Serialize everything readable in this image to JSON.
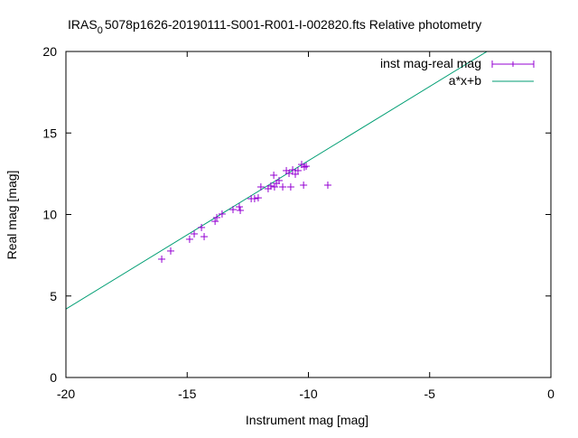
{
  "chart_data": {
    "type": "scatter",
    "title_main": "IRAS",
    "title_sub": "0",
    "title_rest": "5078p1626-20190111-S001-R001-I-002820.fts Relative photometry",
    "xlabel": "Instrument mag [mag]",
    "ylabel": "Real mag [mag]",
    "xlim": [
      -20,
      0
    ],
    "ylim": [
      0,
      20
    ],
    "xticks": [
      -20,
      -15,
      -10,
      -5,
      0
    ],
    "yticks": [
      0,
      5,
      10,
      15,
      20
    ],
    "legend_position": "top-right",
    "series": [
      {
        "name": "inst mag-real mag",
        "kind": "points-errorbars",
        "color": "#9400d3",
        "x": [
          -16.05,
          -15.68,
          -14.9,
          -14.71,
          -14.41,
          -14.3,
          -13.85,
          -13.78,
          -13.56,
          -13.11,
          -12.85,
          -12.81,
          -12.36,
          -12.22,
          -12.07,
          -11.96,
          -11.66,
          -11.55,
          -11.4,
          -11.43,
          -11.32,
          -11.21,
          -11.06,
          -10.73,
          -10.91,
          -10.8,
          -10.65,
          -10.54,
          -10.43,
          -10.28,
          -10.17,
          -10.09,
          -10.2,
          -9.2
        ],
        "y": [
          7.26,
          7.76,
          8.48,
          8.81,
          9.2,
          8.64,
          9.58,
          9.81,
          10.03,
          10.3,
          10.47,
          10.25,
          10.97,
          10.97,
          11.02,
          11.69,
          11.58,
          11.75,
          11.69,
          12.41,
          11.91,
          12.08,
          11.69,
          11.69,
          12.69,
          12.52,
          12.74,
          12.47,
          12.69,
          13.07,
          12.91,
          12.96,
          11.8,
          11.8
        ]
      },
      {
        "name": "a*x+b",
        "kind": "line",
        "color": "#009e73",
        "a": 0.91,
        "b": 22.4
      }
    ]
  }
}
